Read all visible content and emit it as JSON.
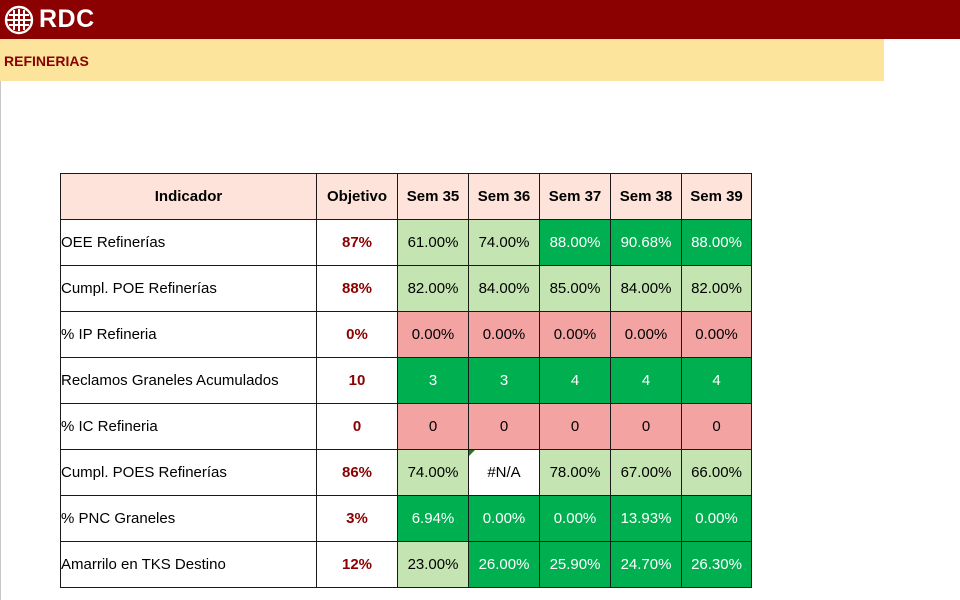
{
  "header": {
    "brand": "RDC",
    "logo_icon": "rdc-globe-icon"
  },
  "subheader": {
    "title": "REFINERIAS"
  },
  "colors": {
    "header_bg": "#8b0000",
    "subheader_bg": "#fde49c",
    "table_header_bg": "#fde3d9",
    "light_green": "#c4e5b2",
    "dark_green": "#00b050",
    "pink": "#f4a3a3",
    "objective_text": "#8b0000"
  },
  "table": {
    "headers": [
      "Indicador",
      "Objetivo",
      "Sem 35",
      "Sem 36",
      "Sem 37",
      "Sem 38",
      "Sem 39"
    ],
    "rows": [
      {
        "indicator": "OEE Refinerías",
        "objective": "87%",
        "values": [
          "61.00%",
          "74.00%",
          "88.00%",
          "90.68%",
          "88.00%"
        ],
        "status": [
          "light-green",
          "light-green",
          "dark-green",
          "dark-green",
          "dark-green"
        ]
      },
      {
        "indicator": "Cumpl. POE Refinerías",
        "objective": "88%",
        "values": [
          "82.00%",
          "84.00%",
          "85.00%",
          "84.00%",
          "82.00%"
        ],
        "status": [
          "light-green",
          "light-green",
          "light-green",
          "light-green",
          "light-green"
        ]
      },
      {
        "indicator": "% IP Refineria",
        "objective": "0%",
        "values": [
          "0.00%",
          "0.00%",
          "0.00%",
          "0.00%",
          "0.00%"
        ],
        "status": [
          "pink",
          "pink",
          "pink",
          "pink",
          "pink"
        ]
      },
      {
        "indicator": "Reclamos Graneles Acumulados",
        "objective": "10",
        "values": [
          "3",
          "3",
          "4",
          "4",
          "4"
        ],
        "status": [
          "dark-green",
          "dark-green",
          "dark-green",
          "dark-green",
          "dark-green"
        ]
      },
      {
        "indicator": "% IC Refineria",
        "objective": "0",
        "values": [
          "0",
          "0",
          "0",
          "0",
          "0"
        ],
        "status": [
          "pink",
          "pink",
          "pink",
          "pink",
          "pink"
        ]
      },
      {
        "indicator": "Cumpl. POES Refinerías",
        "objective": "86%",
        "values": [
          "74.00%",
          "#N/A",
          "78.00%",
          "67.00%",
          "66.00%"
        ],
        "status": [
          "light-green",
          "white",
          "light-green",
          "light-green",
          "light-green"
        ]
      },
      {
        "indicator": "% PNC Graneles",
        "objective": "3%",
        "values": [
          "6.94%",
          "0.00%",
          "0.00%",
          "13.93%",
          "0.00%"
        ],
        "status": [
          "dark-green",
          "dark-green",
          "dark-green",
          "dark-green",
          "dark-green"
        ]
      },
      {
        "indicator": "Amarrilo en TKS Destino",
        "objective": "12%",
        "values": [
          "23.00%",
          "26.00%",
          "25.90%",
          "24.70%",
          "26.30%"
        ],
        "status": [
          "light-green",
          "dark-green",
          "dark-green",
          "dark-green",
          "dark-green"
        ]
      }
    ]
  }
}
